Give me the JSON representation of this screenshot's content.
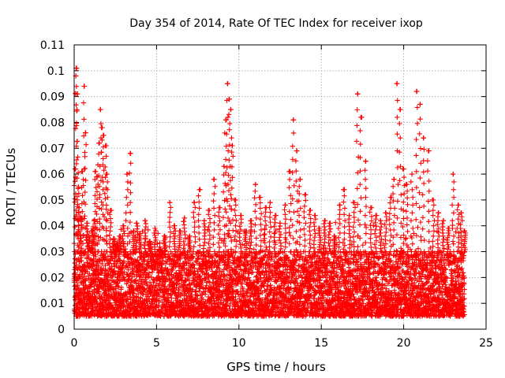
{
  "chart_data": {
    "type": "scatter",
    "title": "Day 354 of 2014, Rate Of TEC Index for receiver ixop",
    "xlabel": "GPS time / hours",
    "ylabel": "ROTI / TECUs",
    "xlim": [
      0,
      25
    ],
    "ylim": [
      0,
      0.11
    ],
    "x_ticks": [
      0,
      5,
      10,
      15,
      20,
      25
    ],
    "x_tick_labels": [
      "0",
      "5",
      "10",
      "15",
      "20",
      "25"
    ],
    "y_ticks": [
      0,
      0.01,
      0.02,
      0.03,
      0.04,
      0.05,
      0.06,
      0.07,
      0.08,
      0.09,
      0.1,
      0.11
    ],
    "y_tick_labels": [
      "0",
      "0.01",
      "0.02",
      "0.03",
      "0.04",
      "0.05",
      "0.06",
      "0.07",
      "0.08",
      "0.09",
      "0.1",
      "0.11"
    ],
    "grid": true,
    "legend": "none",
    "marker": "+",
    "series": [
      {
        "name": "ROTI",
        "color": "#ff0000",
        "x": [
          0.05,
          0.1,
          0.15,
          0.2,
          0.25,
          0.3,
          0.4,
          0.5,
          0.6,
          0.7,
          0.8,
          0.9,
          1.0,
          1.1,
          1.2,
          1.3,
          1.4,
          1.5,
          1.6,
          1.7,
          1.8,
          1.9,
          2.0,
          2.2,
          2.4,
          2.6,
          2.8,
          3.0,
          3.2,
          3.4,
          3.6,
          3.8,
          4.0,
          4.3,
          4.6,
          4.9,
          5.2,
          5.5,
          5.8,
          6.1,
          6.4,
          6.7,
          7.0,
          7.3,
          7.6,
          7.9,
          8.2,
          8.5,
          8.8,
          9.1,
          9.2,
          9.3,
          9.4,
          9.5,
          9.6,
          9.8,
          10.1,
          10.4,
          10.7,
          11.0,
          11.3,
          11.6,
          11.9,
          12.2,
          12.5,
          12.8,
          13.1,
          13.3,
          13.5,
          13.7,
          14.0,
          14.3,
          14.6,
          14.9,
          15.2,
          15.5,
          15.8,
          16.1,
          16.4,
          16.7,
          17.0,
          17.2,
          17.4,
          17.7,
          18.0,
          18.3,
          18.6,
          18.9,
          19.2,
          19.4,
          19.6,
          19.8,
          20.0,
          20.2,
          20.5,
          20.8,
          21.0,
          21.2,
          21.5,
          21.8,
          22.1,
          22.4,
          22.7,
          23.0,
          23.3,
          23.5,
          23.7
        ],
        "y": [
          0.062,
          0.098,
          0.101,
          0.091,
          0.055,
          0.047,
          0.043,
          0.061,
          0.094,
          0.076,
          0.041,
          0.036,
          0.031,
          0.038,
          0.042,
          0.061,
          0.059,
          0.072,
          0.085,
          0.078,
          0.075,
          0.071,
          0.06,
          0.046,
          0.035,
          0.033,
          0.036,
          0.04,
          0.06,
          0.068,
          0.038,
          0.041,
          0.037,
          0.042,
          0.034,
          0.039,
          0.031,
          0.036,
          0.049,
          0.04,
          0.038,
          0.043,
          0.036,
          0.049,
          0.054,
          0.042,
          0.046,
          0.058,
          0.047,
          0.063,
          0.081,
          0.095,
          0.089,
          0.085,
          0.071,
          0.05,
          0.044,
          0.038,
          0.042,
          0.056,
          0.051,
          0.047,
          0.049,
          0.044,
          0.041,
          0.048,
          0.061,
          0.081,
          0.069,
          0.058,
          0.052,
          0.046,
          0.044,
          0.039,
          0.042,
          0.041,
          0.036,
          0.048,
          0.054,
          0.044,
          0.049,
          0.091,
          0.082,
          0.065,
          0.047,
          0.044,
          0.042,
          0.045,
          0.051,
          0.058,
          0.095,
          0.085,
          0.062,
          0.056,
          0.06,
          0.092,
          0.087,
          0.074,
          0.069,
          0.05,
          0.045,
          0.042,
          0.039,
          0.06,
          0.048,
          0.045,
          0.038
        ]
      }
    ],
    "band_range": [
      0.005,
      0.03
    ]
  }
}
